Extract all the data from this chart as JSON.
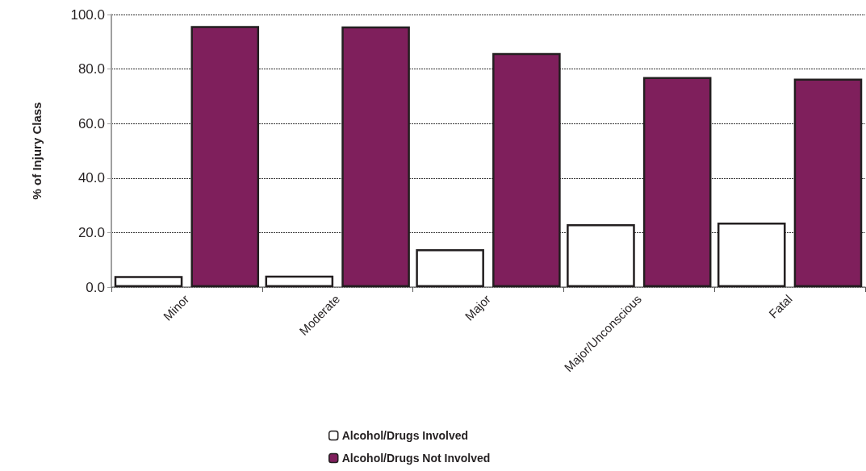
{
  "chart_data": {
    "type": "bar",
    "ylabel": "% of Injury Class",
    "categories": [
      "Minor",
      "Moderate",
      "Major",
      "Major/Unconscious",
      "Fatal"
    ],
    "series": [
      {
        "name": "Alcohol/Drugs Involved",
        "color": "#ffffff",
        "values": [
          4.1,
          4.2,
          13.9,
          23.1,
          23.7
        ]
      },
      {
        "name": "Alcohol/Drugs Not Involved",
        "color": "#7f1f5c",
        "values": [
          95.8,
          95.6,
          85.9,
          77.1,
          76.5
        ]
      }
    ],
    "ylim": [
      0,
      100
    ],
    "yticks": [
      {
        "value": 0,
        "label": "0.0"
      },
      {
        "value": 20,
        "label": "20.0"
      },
      {
        "value": 40,
        "label": "40.0"
      },
      {
        "value": 60,
        "label": "60.0"
      },
      {
        "value": 80,
        "label": "80.0"
      },
      {
        "value": 100,
        "label": "100.0"
      }
    ],
    "grid": "y",
    "legend": "bottom"
  }
}
